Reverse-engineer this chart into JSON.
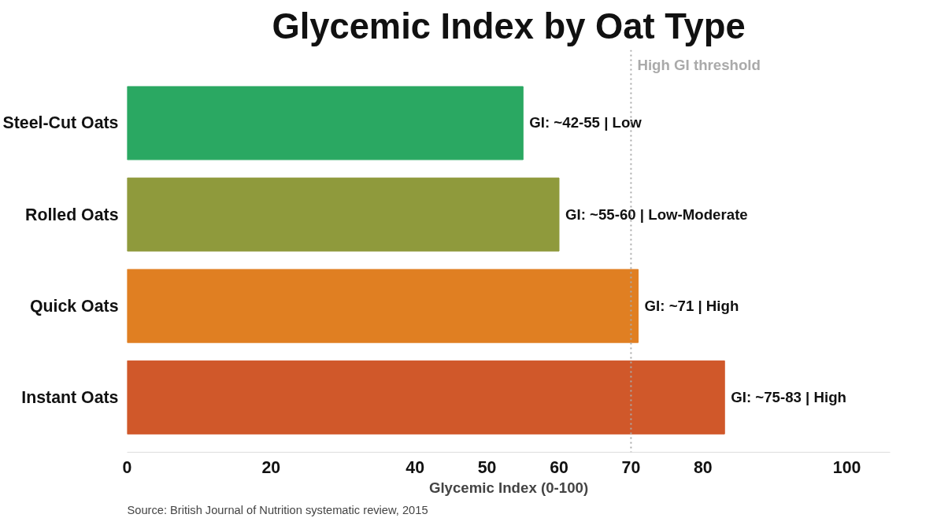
{
  "chart_data": {
    "type": "bar",
    "orientation": "horizontal",
    "title": "Glycemic Index by Oat Type",
    "xlabel": "Glycemic Index (0-100)",
    "categories": [
      "Steel-Cut Oats",
      "Rolled Oats",
      "Quick Oats",
      "Instant Oats"
    ],
    "values": [
      55,
      60,
      71,
      83
    ],
    "colors": [
      "#2aa862",
      "#8f9a3c",
      "#e07f22",
      "#d0582a"
    ],
    "value_labels": [
      "GI: ~42-55 | Low",
      "GI: ~55-60 | Low-Moderate",
      "GI: ~71 | High",
      "GI: ~75-83 | High"
    ],
    "xlim": [
      0,
      106
    ],
    "xticks": [
      0,
      20,
      40,
      50,
      60,
      70,
      80,
      100
    ],
    "ref_lines": [
      {
        "axis": "x",
        "value": 70,
        "label": "High GI threshold",
        "color": "#aaaaaa",
        "line_style": "dotted"
      }
    ],
    "annotations": [
      "Source: British Journal of Nutrition systematic review, 2015"
    ],
    "grid": false
  }
}
